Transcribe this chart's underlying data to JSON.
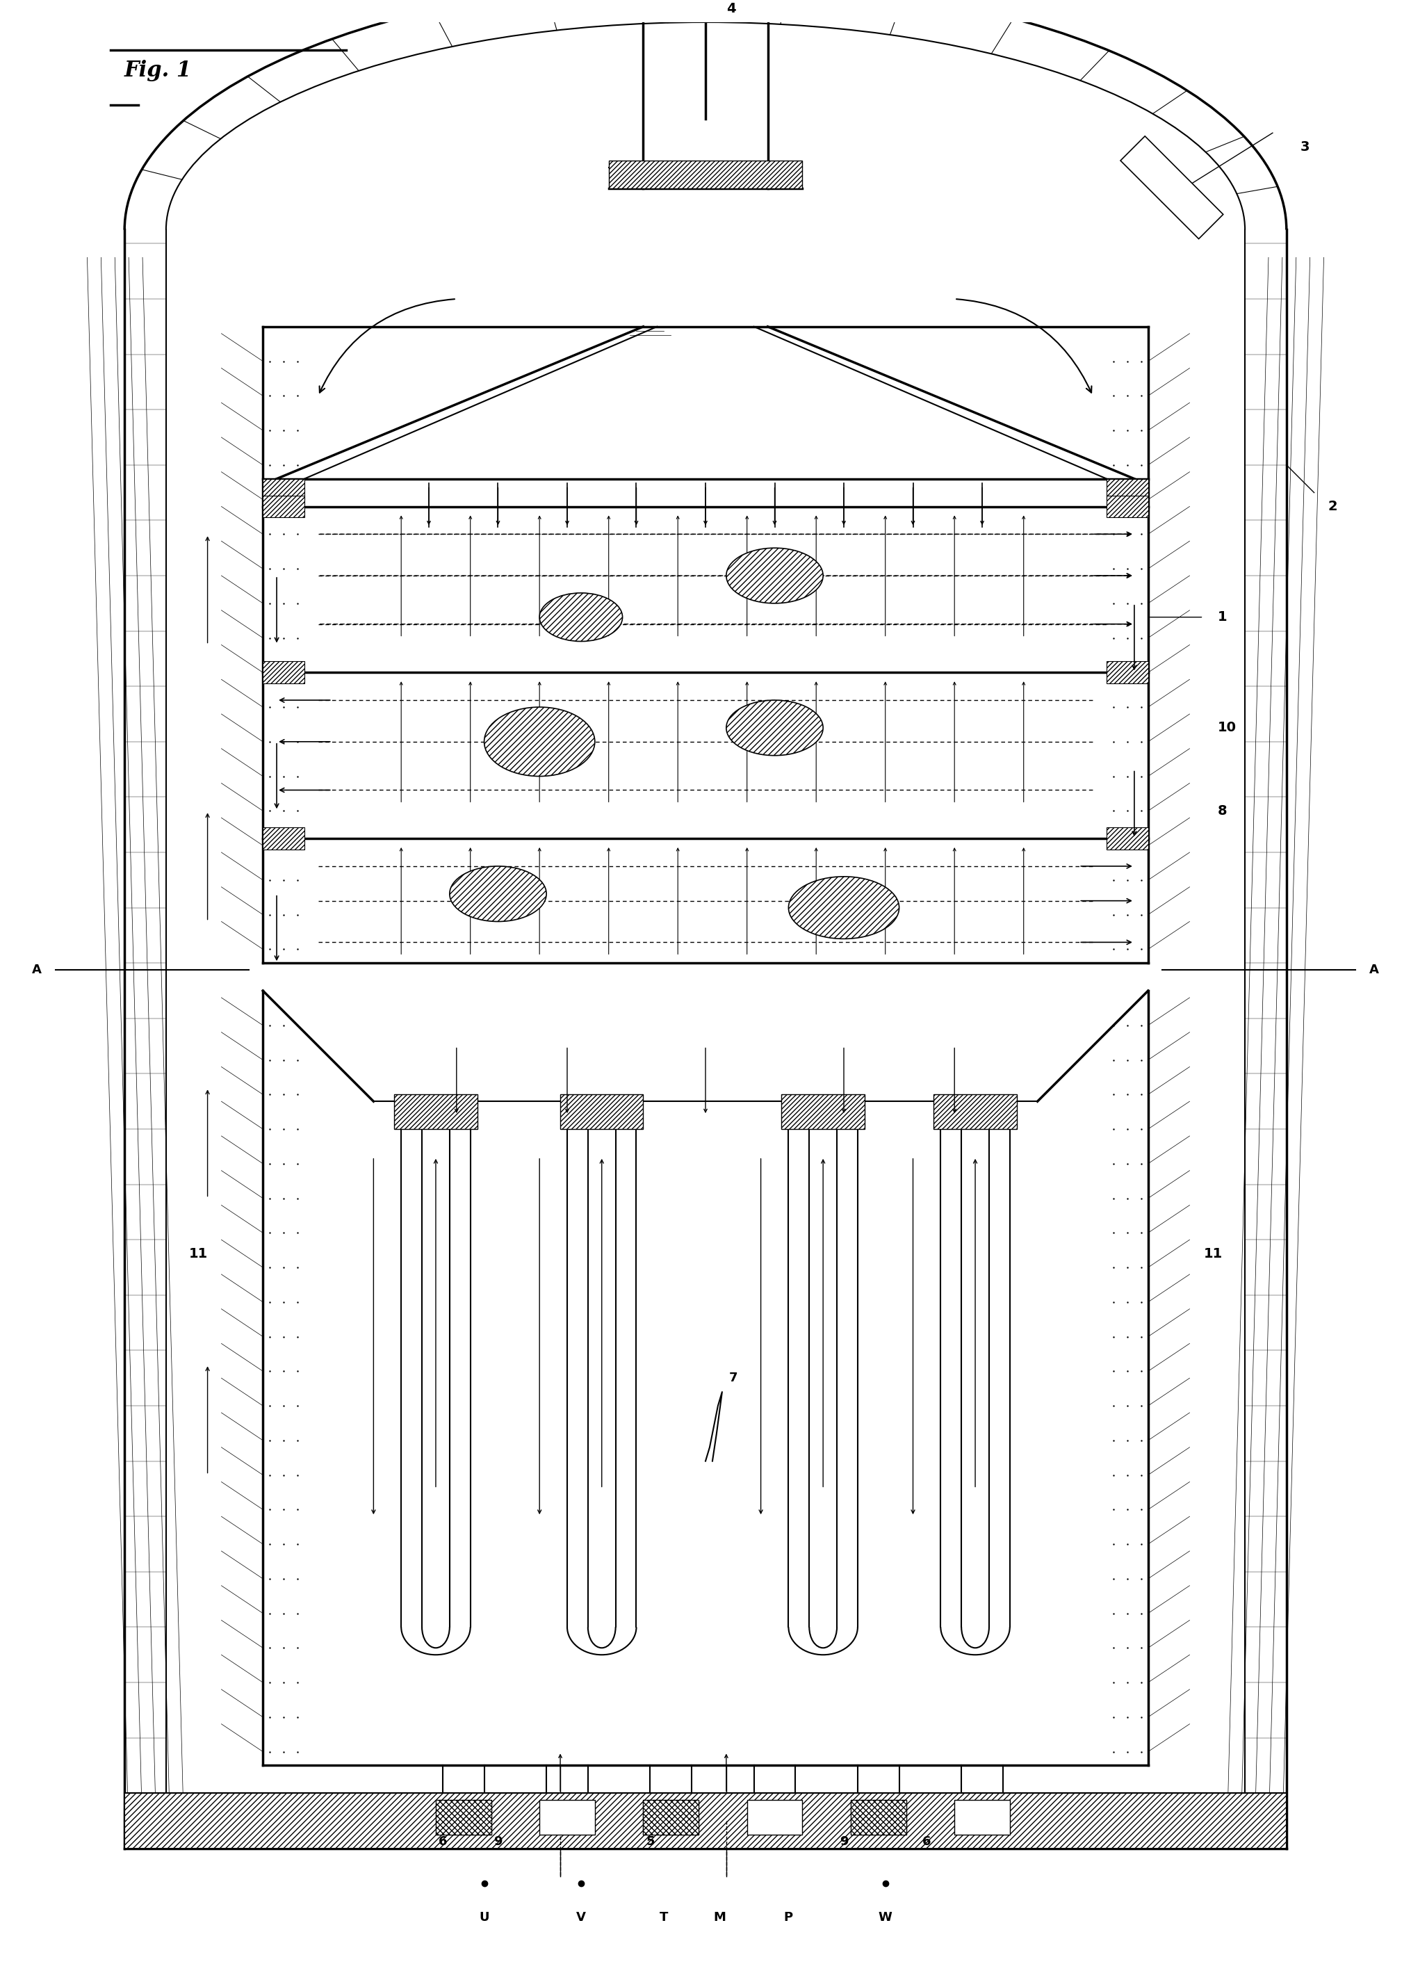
{
  "title": "Fig. 1",
  "background_color": "#ffffff",
  "line_color": "#000000",
  "hatch_color": "#000000",
  "fig_width": 20.3,
  "fig_height": 28.25,
  "labels": {
    "fig": "Fig. 1",
    "1": "1",
    "2": "2",
    "3": "3",
    "4": "4",
    "5": "5",
    "6": "6",
    "7": "7",
    "8": "8",
    "9": "9",
    "10": "10",
    "11": "11",
    "A_left": "A",
    "A_right": "A",
    "U": "U",
    "V": "V",
    "T": "T",
    "M": "M",
    "P": "P",
    "W": "W"
  }
}
